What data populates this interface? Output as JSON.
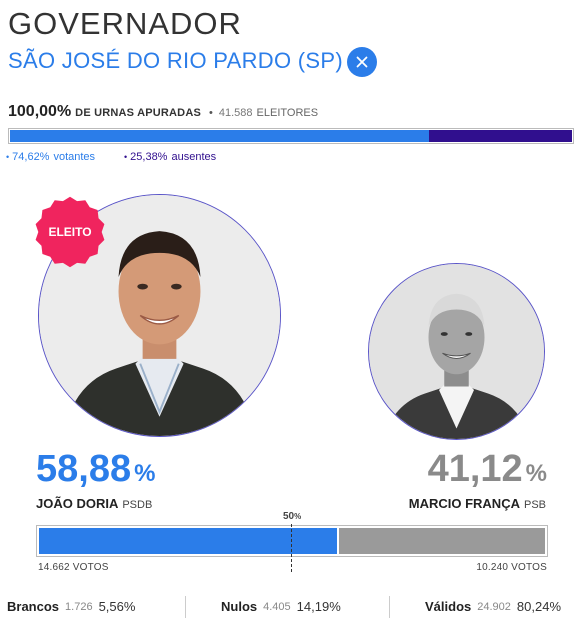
{
  "header": {
    "title": "GOVERNADOR",
    "location": "SÃO JOSÉ DO RIO PARDO (SP)"
  },
  "urnas": {
    "percent": "100,00%",
    "label": "DE URNAS APURADAS",
    "bullet": "•",
    "electors": "41.588",
    "electors_label": "ELEITORES"
  },
  "turnout": {
    "voters_percent": "74,62%",
    "voters_label": "votantes",
    "absent_percent": "25,38%",
    "absent_label": "ausentes",
    "voters_fraction": 0.7462,
    "voters_color": "#2b7de9",
    "absent_color": "#300f8e"
  },
  "badge": {
    "label": "ELEITO",
    "color": "#f0245e"
  },
  "candidates": [
    {
      "percent": "58,88",
      "percent_sign": "%",
      "name": "JOÃO DORIA",
      "party": "PSDB",
      "votes": "14.662 VOTOS",
      "share": 0.5888,
      "color": "#2b7de9"
    },
    {
      "percent": "41,12",
      "percent_sign": "%",
      "name": "MARCIO FRANÇA",
      "party": "PSB",
      "votes": "10.240 VOTOS",
      "share": 0.4112,
      "color": "#9a9a9a"
    }
  ],
  "midpoint": {
    "value": "50",
    "sign": "%"
  },
  "summary": {
    "brancos": {
      "label": "Brancos",
      "count": "1.726",
      "percent": "5,56%"
    },
    "nulos": {
      "label": "Nulos",
      "count": "4.405",
      "percent": "14,19%"
    },
    "validos": {
      "label": "Válidos",
      "count": "24.902",
      "percent": "80,24%"
    }
  }
}
